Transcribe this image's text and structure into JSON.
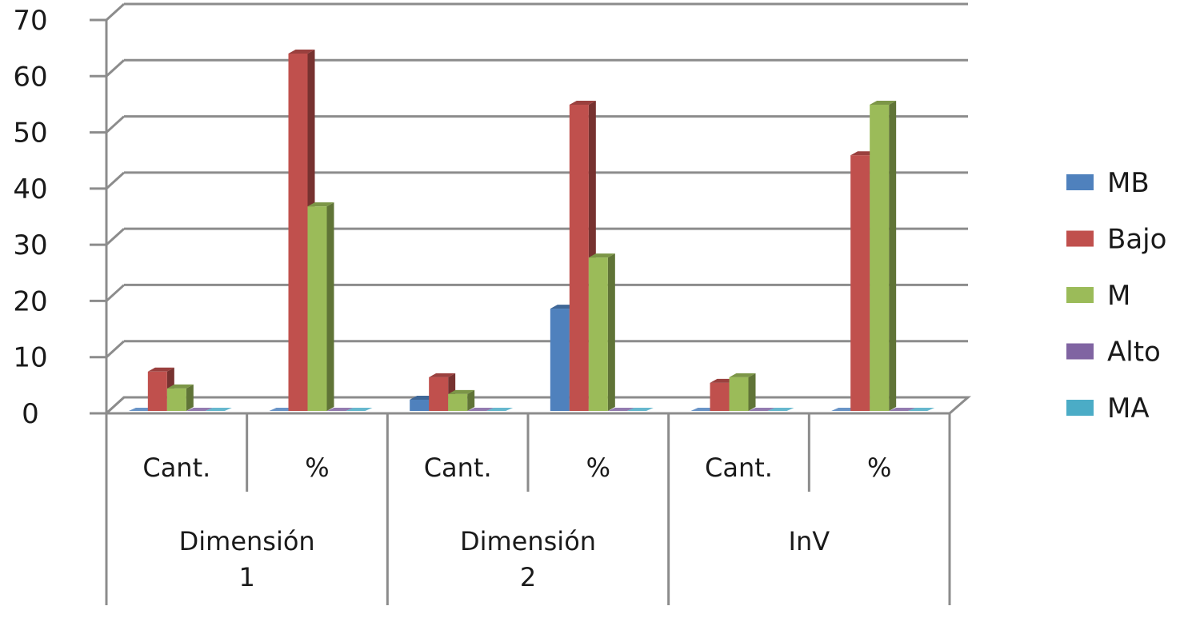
{
  "chart_data": {
    "type": "bar",
    "style": "3d-clustered-column",
    "title": "",
    "xlabel": "",
    "ylabel": "",
    "ylim": [
      0,
      70
    ],
    "yticks": [
      0,
      10,
      20,
      30,
      40,
      50,
      60,
      70
    ],
    "grid": true,
    "legend_position": "right",
    "category_groups": [
      {
        "label": "Dimensión 1",
        "line1": "Dimensión",
        "line2": "1",
        "subcategories": [
          "Cant.",
          "%"
        ]
      },
      {
        "label": "Dimensión 2",
        "line1": "Dimensión",
        "line2": "2",
        "subcategories": [
          "Cant.",
          "%"
        ]
      },
      {
        "label": "InV",
        "line1": "InV",
        "line2": "",
        "subcategories": [
          "Cant.",
          "%"
        ]
      }
    ],
    "categories": [
      "Dimensión 1 Cant.",
      "Dimensión 1 %",
      "Dimensión 2 Cant.",
      "Dimensión 2 %",
      "InV Cant.",
      "InV %"
    ],
    "series": [
      {
        "name": "MB",
        "color": "#4f81bd",
        "values": [
          0,
          0,
          2,
          18.2,
          0,
          0
        ]
      },
      {
        "name": "Bajo",
        "color": "#c0504d",
        "values": [
          7,
          63.6,
          6,
          54.5,
          5,
          45.5
        ]
      },
      {
        "name": "M",
        "color": "#9bbb59",
        "values": [
          4,
          36.4,
          3,
          27.3,
          6,
          54.5
        ]
      },
      {
        "name": "Alto",
        "color": "#8064a2",
        "values": [
          0,
          0,
          0,
          0,
          0,
          0
        ]
      },
      {
        "name": "MA",
        "color": "#4bacc6",
        "values": [
          0,
          0,
          0,
          0,
          0,
          0
        ]
      }
    ]
  },
  "colors": {
    "grid": "#8c8c8c",
    "axis": "#8c8c8c",
    "text": "#1a1a1a"
  }
}
